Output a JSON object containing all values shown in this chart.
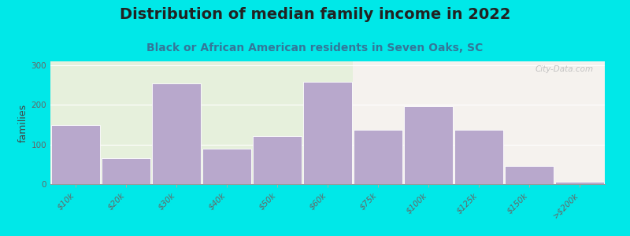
{
  "title": "Distribution of median family income in 2022",
  "subtitle": "Black or African American residents in Seven Oaks, SC",
  "ylabel": "families",
  "categories": [
    "$10k",
    "$20k",
    "$30k",
    "$40k",
    "$50k",
    "$60k",
    "$75k",
    "$100k",
    "$125k",
    "$150k",
    ">$200k"
  ],
  "values": [
    150,
    65,
    255,
    90,
    122,
    258,
    138,
    197,
    137,
    45,
    5
  ],
  "bar_color": "#b8a8cc",
  "bar_edge_color": "#ffffff",
  "background_outer": "#00e8e8",
  "background_plot_left": "#e6f0dc",
  "background_plot_right": "#f5f2ee",
  "ylim": [
    0,
    310
  ],
  "yticks": [
    0,
    100,
    200,
    300
  ],
  "title_fontsize": 14,
  "subtitle_fontsize": 10,
  "ylabel_fontsize": 9,
  "tick_fontsize": 7.5,
  "watermark_text": "City-Data.com"
}
